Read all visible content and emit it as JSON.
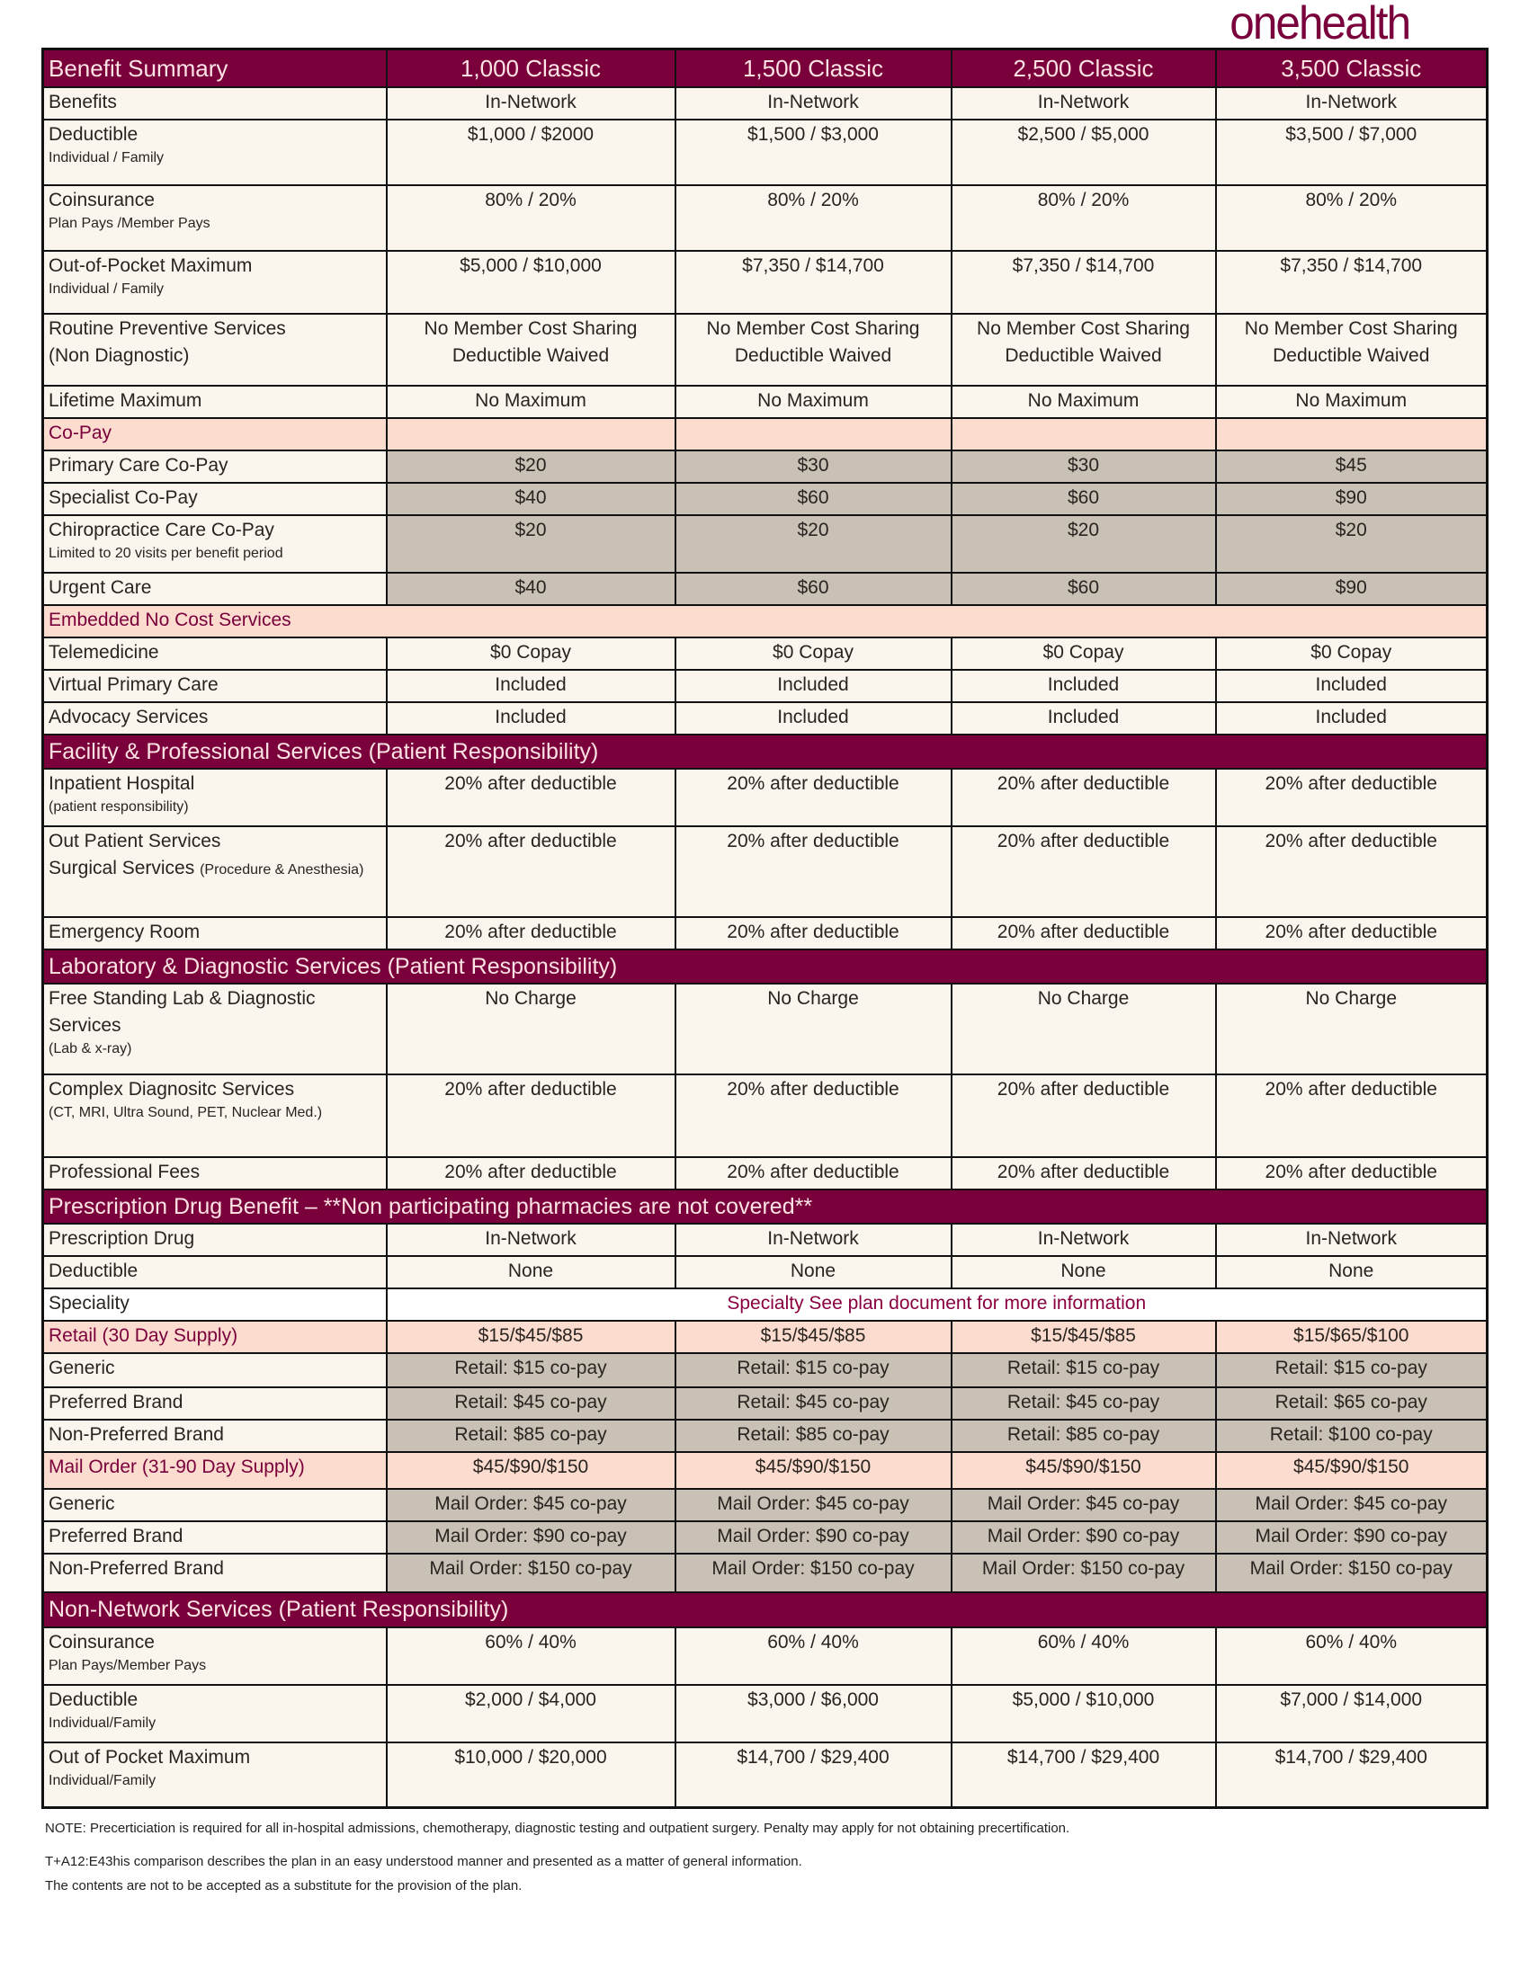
{
  "brand": {
    "logo": "onehealth",
    "color": "#7a003c"
  },
  "colors": {
    "maroon": "#7a003c",
    "cream": "#faf6ee",
    "peach": "#fcdccf",
    "gray": "#c9c1b5"
  },
  "table": {
    "header": [
      "Benefit Summary",
      "1,000 Classic",
      "1,500 Classic",
      "2,500 Classic",
      "3,500 Classic"
    ],
    "rows": [
      {
        "type": "normal",
        "label": "Benefits",
        "values": [
          "In-Network",
          "In-Network",
          "In-Network",
          "In-Network"
        ]
      },
      {
        "type": "normal",
        "label": "Deductible",
        "sub": "Individual / Family",
        "values": [
          "$1,000 / $2000",
          "$1,500 / $3,000",
          "$2,500 / $5,000",
          "$3,500 / $7,000"
        ]
      },
      {
        "type": "normal",
        "label": "Coinsurance",
        "sub": "Plan Pays /Member Pays",
        "values": [
          "80% / 20%",
          "80% / 20%",
          "80% / 20%",
          "80% / 20%"
        ]
      },
      {
        "type": "normal",
        "label": "Out-of-Pocket Maximum",
        "sub": "Individual / Family",
        "values": [
          "$5,000 / $10,000",
          "$7,350 / $14,700",
          "$7,350 / $14,700",
          "$7,350 / $14,700"
        ]
      },
      {
        "type": "normal",
        "label": "Routine Preventive Services\n(Non Diagnostic)",
        "values": [
          "No Member Cost Sharing\nDeductible Waived",
          "No Member Cost Sharing\nDeductible Waived",
          "No Member Cost Sharing\nDeductible Waived",
          "No Member Cost Sharing\nDeductible Waived"
        ]
      },
      {
        "type": "normal",
        "label": "Lifetime Maximum",
        "values": [
          "No Maximum",
          "No Maximum",
          "No Maximum",
          "No Maximum"
        ]
      },
      {
        "type": "peachband",
        "label": "Co-Pay",
        "values": [
          "",
          "",
          "",
          ""
        ]
      },
      {
        "type": "gray",
        "label": "Primary Care Co-Pay",
        "values": [
          "$20",
          "$30",
          "$30",
          "$45"
        ]
      },
      {
        "type": "gray",
        "label": "Specialist Co-Pay",
        "values": [
          "$40",
          "$60",
          "$60",
          "$90"
        ]
      },
      {
        "type": "gray",
        "label": "Chiropractice Care Co-Pay",
        "sub": "Limited to 20 visits per benefit period",
        "values": [
          "$20",
          "$20",
          "$20",
          "$20"
        ]
      },
      {
        "type": "gray",
        "label": "Urgent Care",
        "values": [
          "$40",
          "$60",
          "$60",
          "$90"
        ]
      },
      {
        "type": "peachfull",
        "label": "Embedded No Cost Services"
      },
      {
        "type": "normal",
        "label": "Telemedicine",
        "values": [
          "$0 Copay",
          "$0 Copay",
          "$0 Copay",
          "$0 Copay"
        ]
      },
      {
        "type": "normal",
        "label": "Virtual Primary Care",
        "values": [
          "Included",
          "Included",
          "Included",
          "Included"
        ]
      },
      {
        "type": "normal",
        "label": "Advocacy Services",
        "values": [
          "Included",
          "Included",
          "Included",
          "Included"
        ]
      },
      {
        "type": "section",
        "label": "Facility & Professional Services (Patient Responsibility)"
      },
      {
        "type": "normal",
        "label": "Inpatient Hospital",
        "sub": "(patient responsibility)",
        "values": [
          "20% after deductible",
          "20% after deductible",
          "20% after deductible",
          "20% after deductible"
        ]
      },
      {
        "type": "normal",
        "label": "Out Patient Services\nSurgical Services",
        "inline_sub": "(Procedure & Anesthesia)",
        "values": [
          "20% after deductible",
          "20% after deductible",
          "20% after deductible",
          "20% after deductible"
        ]
      },
      {
        "type": "normal",
        "label": "Emergency Room",
        "values": [
          "20% after deductible",
          "20% after deductible",
          "20% after deductible",
          "20% after deductible"
        ]
      },
      {
        "type": "section",
        "label": "Laboratory & Diagnostic Services (Patient Responsibility)"
      },
      {
        "type": "normal",
        "label": "Free Standing Lab & Diagnostic Services",
        "sub": "(Lab & x-ray)",
        "values": [
          "No Charge",
          "No Charge",
          "No Charge",
          "No Charge"
        ]
      },
      {
        "type": "normal",
        "label": "Complex Diagnositc Services",
        "sub": "(CT, MRI, Ultra Sound, PET, Nuclear Med.)",
        "values": [
          "20% after deductible",
          "20% after deductible",
          "20% after deductible",
          "20% after deductible"
        ]
      },
      {
        "type": "normal",
        "label": "Professional Fees",
        "values": [
          "20% after deductible",
          "20% after deductible",
          "20% after deductible",
          "20% after deductible"
        ]
      },
      {
        "type": "section",
        "label": "Prescription Drug Benefit – **Non participating pharmacies are not covered**"
      },
      {
        "type": "normal",
        "label": "Prescription Drug",
        "values": [
          "In-Network",
          "In-Network",
          "In-Network",
          "In-Network"
        ]
      },
      {
        "type": "normal",
        "label": "Deductible",
        "values": [
          "None",
          "None",
          "None",
          "None"
        ]
      },
      {
        "type": "span",
        "label": "Speciality",
        "value": "Specialty See plan document for more information"
      },
      {
        "type": "peach",
        "label": "Retail (30 Day Supply)",
        "values": [
          "$15/$45/$85",
          "$15/$45/$85",
          "$15/$45/$85",
          "$15/$65/$100"
        ]
      },
      {
        "type": "gray",
        "label": "Generic",
        "values": [
          "Retail: $15 co-pay",
          "Retail: $15 co-pay",
          "Retail: $15 co-pay",
          "Retail: $15 co-pay"
        ]
      },
      {
        "type": "gray",
        "label": "Preferred Brand",
        "values": [
          "Retail: $45 co-pay",
          "Retail: $45 co-pay",
          "Retail: $45 co-pay",
          "Retail: $65 co-pay"
        ]
      },
      {
        "type": "gray",
        "label": "Non-Preferred Brand",
        "values": [
          "Retail: $85 co-pay",
          "Retail: $85 co-pay",
          "Retail: $85 co-pay",
          "Retail: $100 co-pay"
        ]
      },
      {
        "type": "peach",
        "label": "Mail Order (31-90 Day Supply)",
        "values": [
          "$45/$90/$150",
          "$45/$90/$150",
          "$45/$90/$150",
          "$45/$90/$150"
        ]
      },
      {
        "type": "gray",
        "label": "Generic",
        "values": [
          "Mail Order: $45 co-pay",
          "Mail Order: $45 co-pay",
          "Mail Order: $45 co-pay",
          "Mail Order: $45 co-pay"
        ]
      },
      {
        "type": "gray",
        "label": "Preferred Brand",
        "values": [
          "Mail Order: $90 co-pay",
          "Mail Order: $90 co-pay",
          "Mail Order: $90 co-pay",
          "Mail Order: $90 co-pay"
        ]
      },
      {
        "type": "gray",
        "label": "Non-Preferred Brand",
        "values": [
          "Mail Order: $150 co-pay",
          "Mail Order: $150 co-pay",
          "Mail Order: $150 co-pay",
          "Mail Order: $150 co-pay"
        ]
      },
      {
        "type": "section",
        "label": "Non-Network Services (Patient Responsibility)"
      },
      {
        "type": "normal",
        "label": "Coinsurance",
        "sub": "Plan Pays/Member Pays",
        "values": [
          "60% / 40%",
          "60% / 40%",
          "60% / 40%",
          "60% / 40%"
        ]
      },
      {
        "type": "normal",
        "label": "Deductible",
        "sub": "Individual/Family",
        "values": [
          "$2,000 / $4,000",
          "$3,000 / $6,000",
          "$5,000 / $10,000",
          "$7,000 / $14,000"
        ]
      },
      {
        "type": "normal",
        "label": "Out of Pocket Maximum",
        "sub": "Individual/Family",
        "values": [
          "$10,000 / $20,000",
          "$14,700 / $29,400",
          "$14,700 / $29,400",
          "$14,700 / $29,400"
        ]
      }
    ]
  },
  "notes": [
    "NOTE: Precerticiation is required for all in-hospital admissions, chemotherapy, diagnostic testing and outpatient surgery. Penalty may apply for not obtaining precertification.",
    "T+A12:E43his comparison describes the plan in an easy understood manner and presented as a matter of general information.\nThe contents are not to be accepted as a substitute for the provision of the plan."
  ]
}
